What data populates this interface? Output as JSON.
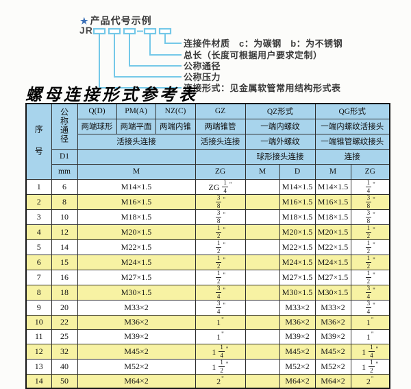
{
  "colors": {
    "header_blue": "#A8D4EC",
    "row_yellow": "#F7F2A3",
    "line_cyan": "#74C8E8",
    "star_blue": "#3A6FB7",
    "text_dark": "#3b3b3b"
  },
  "diagram": {
    "star": "★",
    "title": "产品代号示例",
    "code_prefix": "JR",
    "labels": [
      "连接件材质　c：为碳钢　b：为不锈钢",
      "总长（长度可根据用户要求定制）",
      "公称通径",
      "公称压力",
      "连接形式：见金属软管常用结构形式表"
    ]
  },
  "table": {
    "title": "螺母连接形式参考表",
    "header": {
      "serial": "序号",
      "nominal_diameter": "公称通径",
      "d1": "D1",
      "unit": "mm",
      "q_code": "Q(D)",
      "pm_code": "PM(A)",
      "nz_code": "NZ(C)",
      "gz_code": "GZ",
      "qz_code": "QZ形式",
      "qg_code": "QG形式",
      "q_type": "两端球形",
      "pm_type": "两端平面",
      "nz_type": "两端内锥",
      "gz_type": "两端锥管",
      "qz_type": "一端内螺纹",
      "qg_type": "一端内螺纹活接头",
      "qpn_connection": "活接头连接",
      "gz_connection": "活接头连接",
      "qz_row3": "一端外螺纹",
      "qg_row3": "一端锥管螺纹接头",
      "qz_row4": "球形接头连接",
      "qg_row4": "连接",
      "m": "M",
      "zg": "ZG",
      "qz_m": "M",
      "qz_d": "D",
      "qg_m": "M",
      "qg_zg": "ZG"
    },
    "rows": [
      [
        "1",
        "6",
        "M14×1.5",
        "ZG 1/4\"",
        "",
        "M14×1.5",
        "M14×1.5",
        "1/4\""
      ],
      [
        "2",
        "8",
        "M16×1.5",
        "3/8\"",
        "",
        "M16×1.5",
        "M16×1.5",
        "3/8\""
      ],
      [
        "3",
        "10",
        "M18×1.5",
        "3/8\"",
        "",
        "M18×1.5",
        "M18×1.5",
        "3/8\""
      ],
      [
        "4",
        "12",
        "M20×1.5",
        "1/2\"",
        "",
        "M20×1.5",
        "M20×1.5",
        "1/2\""
      ],
      [
        "5",
        "14",
        "M22×1.5",
        "1/2\"",
        "",
        "M22×1.5",
        "M22×1.5",
        "1/2\""
      ],
      [
        "6",
        "15",
        "M24×1.5",
        "1/2\"",
        "",
        "M24×1.5",
        "M24×1.5",
        "1/2\""
      ],
      [
        "7",
        "16",
        "M27×1.5",
        "1/2\"",
        "",
        "M27×1.5",
        "M27×1.5",
        "1/2\""
      ],
      [
        "8",
        "18",
        "M30×1.5",
        "3/4\"",
        "",
        "M30×1.5",
        "M30×1.5",
        "3/4\""
      ],
      [
        "9",
        "20",
        "M33×2",
        "3/4\"",
        "",
        "M33×2",
        "M33×2",
        "3/4\""
      ],
      [
        "10",
        "22",
        "M36×2",
        "1\"",
        "",
        "M36×2",
        "M36×2",
        "1\""
      ],
      [
        "11",
        "25",
        "M39×2",
        "1\"",
        "",
        "M39×2",
        "M39×2",
        "1\""
      ],
      [
        "12",
        "32",
        "M45×2",
        "1 1/4\"",
        "",
        "M45×2",
        "M45×2",
        "1 1/4\""
      ],
      [
        "13",
        "40",
        "M52×2",
        "1 1/2\"",
        "",
        "M52×2",
        "M52×2",
        "1 1/2\""
      ],
      [
        "14",
        "50",
        "M64×2",
        "2\"",
        "",
        "M64×2",
        "M64×2",
        "2\""
      ]
    ]
  }
}
